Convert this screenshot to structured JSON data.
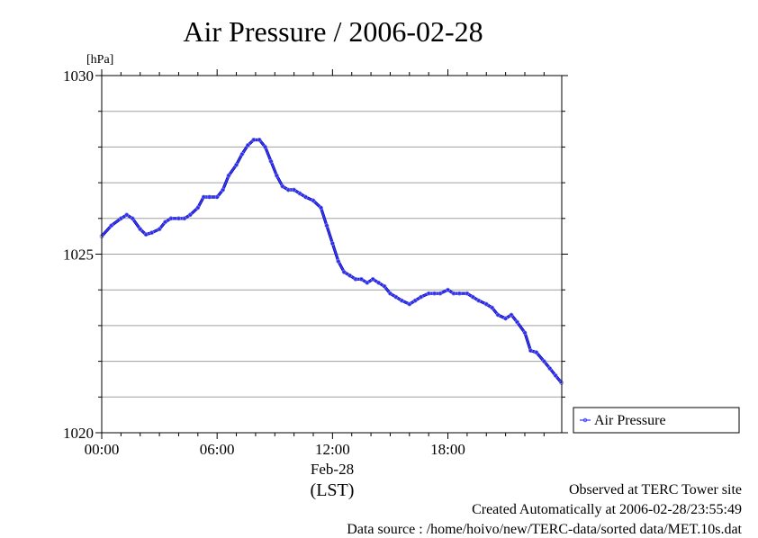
{
  "chart_data": {
    "type": "line",
    "title": "Air Pressure / 2006-02-28",
    "ylabel": "[hPa]",
    "xlabel": "(LST)",
    "date_label": "Feb-28",
    "x_unit": "hours",
    "xlim": [
      0,
      23.92
    ],
    "ylim": [
      1020,
      1030
    ],
    "y_ticks": [
      1020,
      1025,
      1030
    ],
    "y_tick_labels": [
      "1020",
      "1025",
      "1030"
    ],
    "y_gridlines": [
      1021,
      1022,
      1023,
      1024,
      1025,
      1026,
      1027,
      1028,
      1029
    ],
    "x_ticks": [
      0,
      6,
      12,
      18
    ],
    "x_tick_labels": [
      "00:00",
      "06:00",
      "12:00",
      "18:00"
    ],
    "grid": true,
    "legend_position": "right",
    "series": [
      {
        "name": "Air Pressure",
        "color": "#3333ff",
        "x": [
          0,
          0.5,
          1.0,
          1.3,
          1.6,
          2.0,
          2.3,
          2.6,
          3.0,
          3.3,
          3.6,
          4.0,
          4.3,
          4.6,
          5.0,
          5.3,
          5.6,
          6.0,
          6.3,
          6.6,
          7.0,
          7.3,
          7.6,
          7.9,
          8.2,
          8.5,
          8.8,
          9.1,
          9.4,
          9.7,
          10.0,
          10.3,
          10.6,
          11.0,
          11.4,
          11.7,
          12.0,
          12.3,
          12.6,
          12.9,
          13.2,
          13.5,
          13.8,
          14.1,
          14.4,
          14.7,
          15.0,
          15.3,
          15.6,
          16.0,
          16.3,
          16.6,
          17.0,
          17.3,
          17.6,
          18.0,
          18.3,
          18.6,
          19.0,
          19.3,
          19.6,
          20.0,
          20.3,
          20.6,
          21.0,
          21.3,
          21.6,
          22.0,
          22.3,
          22.6,
          23.0,
          23.3,
          23.6,
          23.9
        ],
        "values": [
          1025.5,
          1025.8,
          1026.0,
          1026.1,
          1026.0,
          1025.7,
          1025.55,
          1025.6,
          1025.7,
          1025.9,
          1026.0,
          1026.0,
          1026.0,
          1026.1,
          1026.3,
          1026.6,
          1026.6,
          1026.6,
          1026.8,
          1027.2,
          1027.5,
          1027.8,
          1028.05,
          1028.2,
          1028.2,
          1028.0,
          1027.6,
          1027.2,
          1026.9,
          1026.8,
          1026.8,
          1026.7,
          1026.6,
          1026.5,
          1026.3,
          1025.8,
          1025.3,
          1024.8,
          1024.5,
          1024.4,
          1024.3,
          1024.3,
          1024.2,
          1024.3,
          1024.2,
          1024.1,
          1023.9,
          1023.8,
          1023.7,
          1023.6,
          1023.7,
          1023.8,
          1023.9,
          1023.9,
          1023.9,
          1024.0,
          1023.9,
          1023.9,
          1023.9,
          1023.8,
          1023.7,
          1023.6,
          1023.5,
          1023.3,
          1023.2,
          1023.3,
          1023.1,
          1022.8,
          1022.3,
          1022.25,
          1022.0,
          1021.8,
          1021.6,
          1021.4
        ]
      }
    ]
  },
  "footer": {
    "site": "Observed at TERC Tower site",
    "created": "Created Automatically at 2006-02-28/23:55:49",
    "source": "Data source : /home/hoivo/new/TERC-data/sorted  data/MET.10s.dat"
  }
}
